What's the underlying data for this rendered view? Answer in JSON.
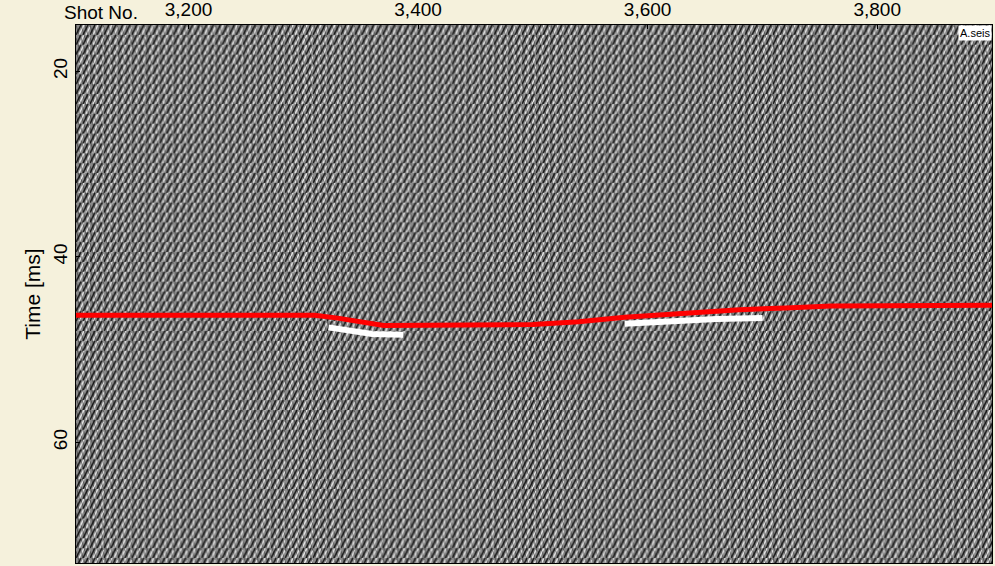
{
  "chart_data": {
    "type": "line",
    "xlabel": "Shot No.",
    "ylabel": "Time [ms]",
    "annotations": [
      {
        "text": "A.seis",
        "x": 3900,
        "y": 15
      }
    ],
    "xlim": [
      3102,
      3900
    ],
    "xticks": [
      {
        "value": 3200,
        "label": "3,200"
      },
      {
        "value": 3400,
        "label": "3,400"
      },
      {
        "value": 3600,
        "label": "3,600"
      },
      {
        "value": 3800,
        "label": "3,800"
      }
    ],
    "ylim": [
      73,
      15
    ],
    "yticks": [
      20,
      40,
      60
    ],
    "grid": false,
    "series": [
      {
        "color": "#ffffff",
        "x": [
          3322,
          3340,
          3360,
          3387
        ],
        "values": [
          47.6,
          48.0,
          48.3,
          48.4
        ]
      },
      {
        "color": "#ffffff",
        "x": [
          3580,
          3620,
          3660,
          3700
        ],
        "values": [
          47.2,
          46.9,
          46.7,
          46.6
        ]
      },
      {
        "color": "#ff0000",
        "x": [
          3102,
          3310,
          3330,
          3370,
          3500,
          3540,
          3580,
          3640,
          3680,
          3720,
          3760,
          3900
        ],
        "values": [
          46.3,
          46.3,
          46.6,
          47.4,
          47.3,
          47.0,
          46.5,
          46.0,
          45.7,
          45.5,
          45.3,
          45.2
        ]
      }
    ]
  }
}
